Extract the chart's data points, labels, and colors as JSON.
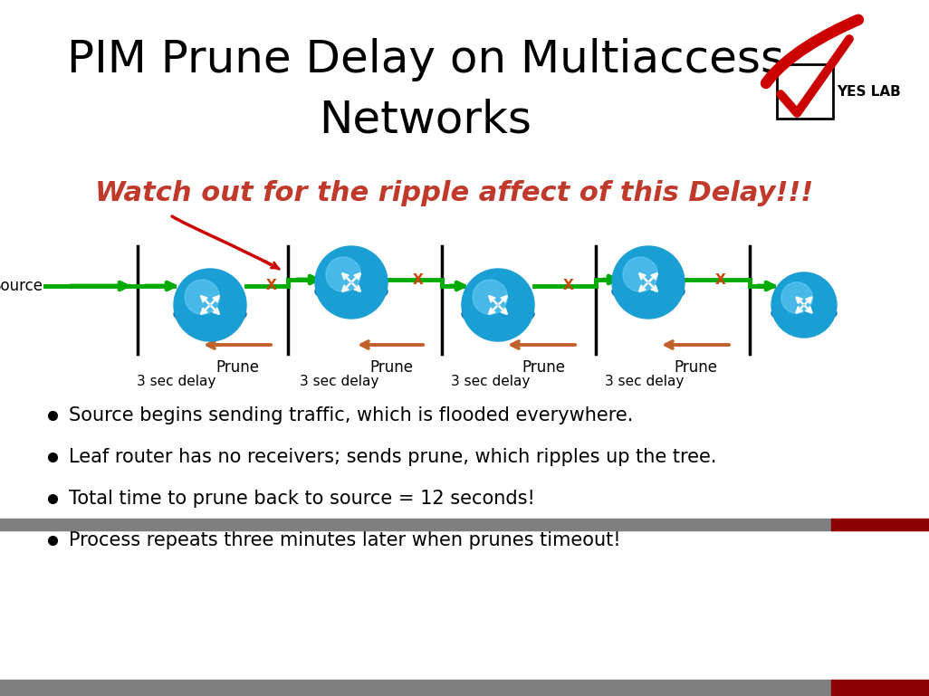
{
  "title": "PIM Prune Delay on Multiaccess\nNetworks",
  "title_fontsize": 36,
  "bg_color": "#ffffff",
  "header_bar_color": "#7f7f7f",
  "header_bar_right_color": "#8b0000",
  "subtitle": "Watch out for the ripple affect of this Delay!!!",
  "subtitle_color": "#c0392b",
  "subtitle_fontsize": 22,
  "source_label": "Source",
  "prune_labels": [
    "Prune",
    "Prune",
    "Prune",
    "Prune"
  ],
  "delay_labels": [
    "3 sec delay",
    "3 sec delay",
    "3 sec delay",
    "3 sec delay"
  ],
  "bullet_points": [
    "Source begins sending traffic, which is flooded everywhere.",
    "Leaf router has no receivers; sends prune, which ripples up the tree.",
    "Total time to prune back to source = 12 seconds!",
    "Process repeats three minutes later when prunes timeout!"
  ],
  "bullet_fontsize": 15,
  "green_line_color": "#00aa00",
  "prune_arrow_color": "#c0602a",
  "yeslab_text": "YES LAB"
}
